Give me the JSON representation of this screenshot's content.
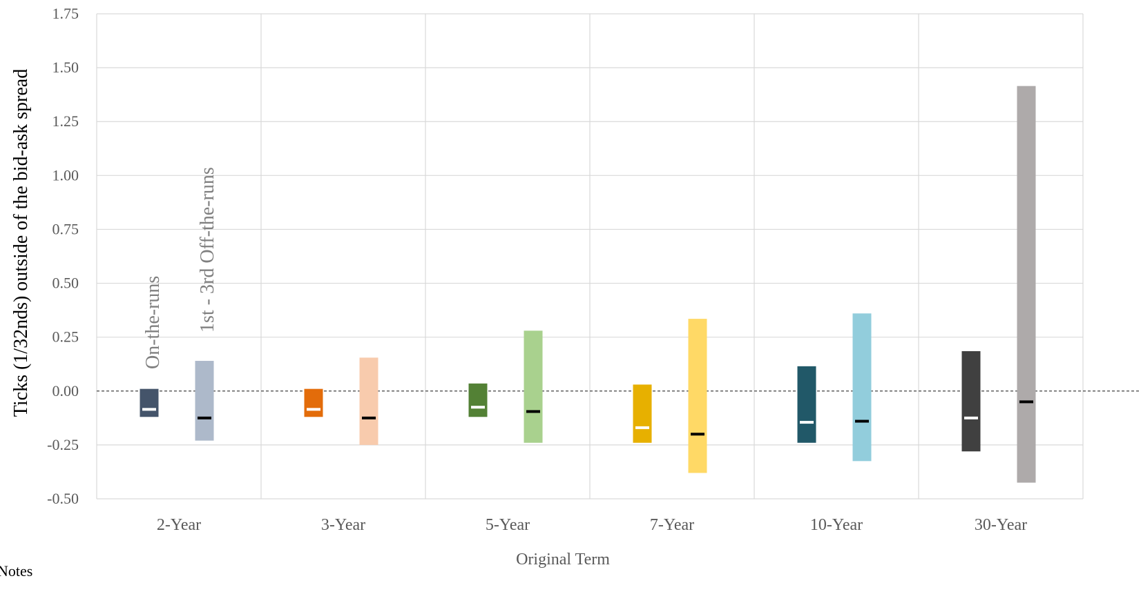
{
  "chart_data": {
    "type": "floating-bar",
    "ylabel": "Ticks (1/32nds) outside of the bid-ask spread",
    "xlabel": "Original Term",
    "ylim": [
      -0.5,
      1.75
    ],
    "yticks": [
      -0.5,
      -0.25,
      0.0,
      0.25,
      0.5,
      0.75,
      1.0,
      1.25,
      1.5,
      1.75
    ],
    "ytick_labels": [
      "-0.50",
      "-0.25",
      "0.00",
      "0.25",
      "0.50",
      "0.75",
      "1.00",
      "1.25",
      "1.50",
      "1.75"
    ],
    "grid": true,
    "zero_line": "dashed",
    "categories": [
      "2-Year",
      "3-Year",
      "5-Year",
      "7-Year",
      "10-Year",
      "30-Year"
    ],
    "series": [
      {
        "name": "On-the-runs",
        "colors": [
          "#44546a",
          "#e36c0a",
          "#538135",
          "#e7b000",
          "#215868",
          "#404040"
        ],
        "marker_color": "#ffffff",
        "low": [
          -0.12,
          -0.12,
          -0.12,
          -0.24,
          -0.24,
          -0.28
        ],
        "high": [
          0.01,
          0.01,
          0.035,
          0.03,
          0.115,
          0.185
        ],
        "marker": [
          -0.085,
          -0.085,
          -0.075,
          -0.17,
          -0.145,
          -0.125
        ]
      },
      {
        "name": "1st - 3rd Off-the-runs",
        "colors": [
          "#adb9ca",
          "#f8cbad",
          "#a9d18e",
          "#ffd966",
          "#92cddc",
          "#aeaaaa"
        ],
        "marker_color": "#000000",
        "low": [
          -0.23,
          -0.25,
          -0.24,
          -0.38,
          -0.325,
          -0.425
        ],
        "high": [
          0.14,
          0.155,
          0.28,
          0.335,
          0.36,
          1.415
        ],
        "marker": [
          -0.125,
          -0.125,
          -0.095,
          -0.2,
          -0.14,
          -0.05
        ]
      }
    ],
    "annotations": [
      "On-the-runs",
      "1st - 3rd Off-the-runs"
    ]
  },
  "notes_label": "Notes"
}
